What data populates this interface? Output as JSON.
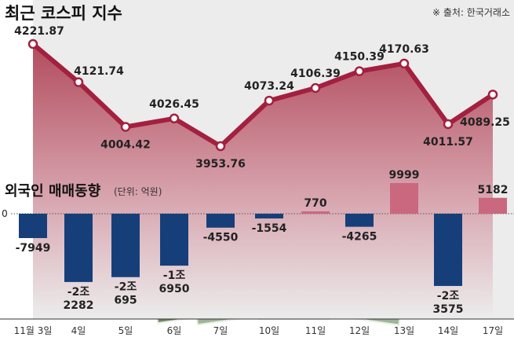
{
  "chart_data": [
    {
      "type": "line",
      "title": "최근 코스피 지수",
      "source": "※ 출처: 한국거래소",
      "categories": [
        "11월 3일",
        "4일",
        "5일",
        "6일",
        "7일",
        "10일",
        "11일",
        "12일",
        "13일",
        "14일",
        "17일"
      ],
      "values": [
        4221.87,
        4121.74,
        4004.42,
        4026.45,
        3953.76,
        4073.24,
        4106.39,
        4150.39,
        4170.63,
        4011.57,
        4089.25
      ],
      "labels": [
        "4221.87",
        "4121.74",
        "4004.42",
        "4026.45",
        "3953.76",
        "4073.24",
        "4106.39",
        "4150.39",
        "4170.63",
        "4011.57",
        "4089.25"
      ],
      "color": "#a3203f"
    },
    {
      "type": "bar",
      "title": "외국인 매매동향",
      "unit": "(단위: 억원)",
      "zero_label": "0",
      "categories": [
        "11월 3일",
        "4일",
        "5일",
        "6일",
        "7일",
        "10일",
        "11일",
        "12일",
        "13일",
        "14일",
        "17일"
      ],
      "values": [
        -7949,
        -22282,
        -20695,
        -16950,
        -4550,
        -1554,
        770,
        -4265,
        9999,
        -23575,
        5182
      ],
      "labels": [
        [
          "-7949"
        ],
        [
          "-2조",
          "2282"
        ],
        [
          "-2조",
          "695"
        ],
        [
          "-1조",
          "6950"
        ],
        [
          "-4550"
        ],
        [
          "-1554"
        ],
        [
          "770"
        ],
        [
          "-4265"
        ],
        [
          "9999"
        ],
        [
          "-2조",
          "3575"
        ],
        [
          "5182"
        ]
      ],
      "colors": {
        "negative": "#163f7a",
        "positive": "#c9687e"
      }
    }
  ]
}
